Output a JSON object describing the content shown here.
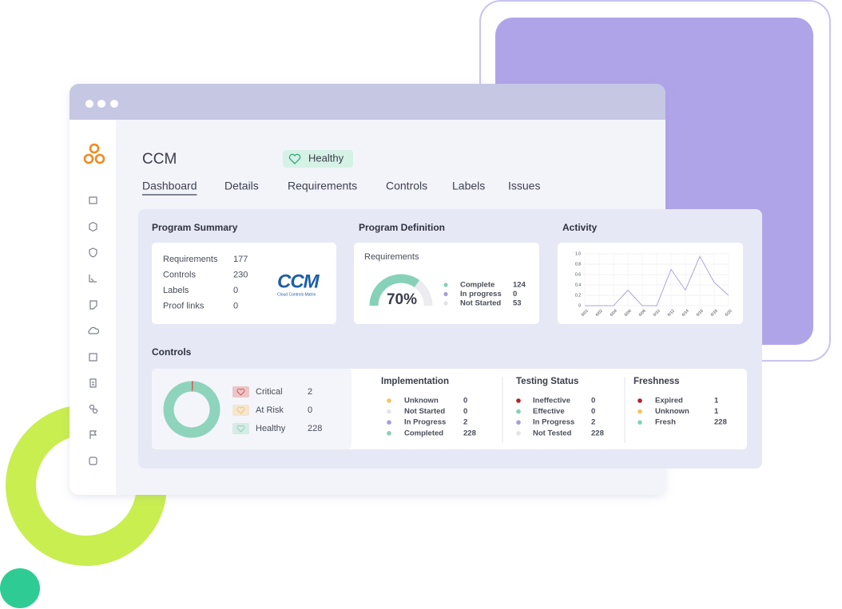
{
  "window": {
    "title": "CCM",
    "status": "Healthy",
    "tabs": [
      "Dashboard",
      "Details",
      "Requirements",
      "Controls",
      "Labels",
      "Issues"
    ]
  },
  "program_summary": {
    "title": "Program Summary",
    "rows": [
      {
        "label": "Requirements",
        "value": 177
      },
      {
        "label": "Controls",
        "value": 230
      },
      {
        "label": "Labels",
        "value": 0
      },
      {
        "label": "Proof links",
        "value": 0
      }
    ],
    "logo": {
      "text": "CCM",
      "caption": "Cloud Controls Matrix"
    }
  },
  "program_definition": {
    "title": "Program Definition",
    "subtitle": "Requirements",
    "gauge": {
      "value": 70,
      "label": "70%",
      "color": "#86d1b8",
      "track": "#ececf0"
    },
    "items": [
      {
        "label": "Complete",
        "value": 124,
        "color": "#86d1b8"
      },
      {
        "label": "In progress",
        "value": 0,
        "color": "#a99be0"
      },
      {
        "label": "Not Started",
        "value": 53,
        "color": "#e1e1e6"
      }
    ]
  },
  "activity": {
    "title": "Activity",
    "chart_data": {
      "type": "line",
      "categories": [
        "6/01",
        "6/02",
        "6/04",
        "6/06",
        "6/08",
        "6/10",
        "6/12",
        "6/14",
        "6/16",
        "6/18",
        "6/20"
      ],
      "values": [
        0,
        0,
        0,
        0.3,
        0,
        0,
        0.7,
        0.3,
        0.95,
        0.45,
        0.2
      ],
      "ylim": [
        0,
        1
      ],
      "yticks": [
        0,
        0.2,
        0.4,
        0.6,
        0.8,
        {
          "value": 1,
          "label": "1.0"
        }
      ],
      "color": "#aaa6dc",
      "grid": true
    }
  },
  "controls": {
    "title": "Controls",
    "summary": [
      {
        "label": "Critical",
        "value": 2,
        "color": "#d65a55"
      },
      {
        "label": "At Risk",
        "value": 0,
        "color": "#f5c46e"
      },
      {
        "label": "Healthy",
        "value": 228,
        "color": "#8ed3bb"
      }
    ],
    "groups": [
      {
        "title": "Implementation",
        "items": [
          {
            "label": "Unknown",
            "value": 0,
            "color": "#f7c35f"
          },
          {
            "label": "Not Started",
            "value": 0,
            "color": "#e3e3e8"
          },
          {
            "label": "In Progress",
            "value": 2,
            "color": "#a99be0"
          },
          {
            "label": "Completed",
            "value": 228,
            "color": "#86d1b8"
          }
        ]
      },
      {
        "title": "Testing Status",
        "items": [
          {
            "label": "Ineffective",
            "value": 0,
            "color": "#b5202e"
          },
          {
            "label": "Effective",
            "value": 0,
            "color": "#86d1b8"
          },
          {
            "label": "In Progress",
            "value": 2,
            "color": "#a99be0"
          },
          {
            "label": "Not Tested",
            "value": 228,
            "color": "#e3e3e8"
          }
        ]
      },
      {
        "title": "Freshness",
        "items": [
          {
            "label": "Expired",
            "value": 1,
            "color": "#b5202e"
          },
          {
            "label": "Unknown",
            "value": 1,
            "color": "#f7c35f"
          },
          {
            "label": "Fresh",
            "value": 228,
            "color": "#86d1b8"
          }
        ]
      }
    ]
  }
}
